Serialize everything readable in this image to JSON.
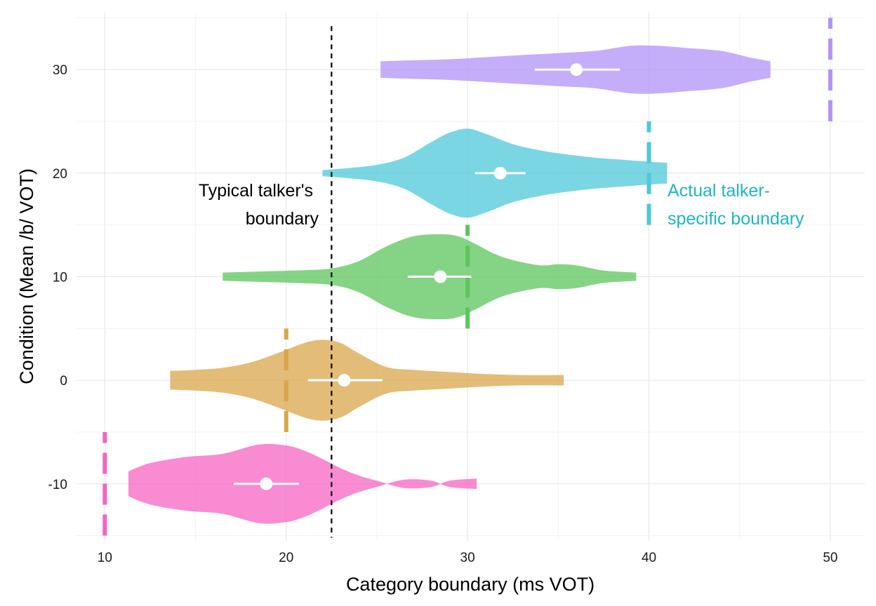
{
  "chart_data": {
    "type": "violin",
    "xlabel": "Category boundary (ms VOT)",
    "ylabel": "Condition (Mean /b/ VOT)",
    "xlim": [
      8.4,
      51.9
    ],
    "ylim": [
      -15.5,
      35.5
    ],
    "x_ticks": [
      10,
      20,
      30,
      40,
      50
    ],
    "x_tick_labels": [
      "10",
      "20",
      "30",
      "40",
      "50"
    ],
    "y_ticks": [
      -10,
      0,
      10,
      20,
      30
    ],
    "y_tick_labels": [
      "-10",
      "0",
      "10",
      "20",
      "30"
    ],
    "grid": true,
    "series": [
      {
        "condition": -10,
        "color": "#F564C3",
        "range": [
          11.3,
          30.5
        ],
        "mean": 18.9,
        "ci": [
          17.1,
          20.7
        ],
        "true_boundary": 10,
        "density": [
          [
            11.3,
            1.2
          ],
          [
            12.5,
            2.0
          ],
          [
            14.5,
            2.6
          ],
          [
            16.5,
            2.9
          ],
          [
            18.5,
            3.8
          ],
          [
            20.0,
            3.7
          ],
          [
            21.0,
            3.2
          ],
          [
            22.0,
            2.4
          ],
          [
            23.0,
            1.5
          ],
          [
            24.0,
            0.8
          ],
          [
            25.0,
            0.3
          ],
          [
            26.5,
            -0.4
          ],
          [
            28.0,
            -0.3
          ],
          [
            29.0,
            0.3
          ],
          [
            30.5,
            0.5
          ]
        ]
      },
      {
        "condition": 0,
        "color": "#D9A649",
        "range": [
          13.6,
          35.3
        ],
        "mean": 23.2,
        "ci": [
          21.2,
          25.3
        ],
        "true_boundary": 20,
        "density": [
          [
            13.6,
            0.9
          ],
          [
            15.0,
            1.0
          ],
          [
            16.5,
            1.2
          ],
          [
            18.0,
            1.7
          ],
          [
            19.5,
            2.6
          ],
          [
            21.0,
            3.6
          ],
          [
            22.0,
            3.9
          ],
          [
            23.0,
            3.6
          ],
          [
            24.0,
            2.6
          ],
          [
            25.5,
            1.3
          ],
          [
            27.0,
            1.0
          ],
          [
            29.0,
            0.8
          ],
          [
            31.0,
            0.6
          ],
          [
            33.0,
            0.5
          ],
          [
            35.3,
            0.5
          ]
        ]
      },
      {
        "condition": 10,
        "color": "#5CC65C",
        "range": [
          16.5,
          39.3
        ],
        "mean": 28.5,
        "ci": [
          26.7,
          30.2
        ],
        "true_boundary": 30,
        "density": [
          [
            16.5,
            0.4
          ],
          [
            18.5,
            0.5
          ],
          [
            20.5,
            0.6
          ],
          [
            22.5,
            0.8
          ],
          [
            24.0,
            1.5
          ],
          [
            25.5,
            2.9
          ],
          [
            27.0,
            3.9
          ],
          [
            28.5,
            4.1
          ],
          [
            29.5,
            3.9
          ],
          [
            30.5,
            3.1
          ],
          [
            31.5,
            2.2
          ],
          [
            32.5,
            1.6
          ],
          [
            34.0,
            1.1
          ],
          [
            35.0,
            1.2
          ],
          [
            36.0,
            1.1
          ],
          [
            37.5,
            0.6
          ],
          [
            39.3,
            0.4
          ]
        ]
      },
      {
        "condition": 20,
        "color": "#4DC8D8",
        "range": [
          22.0,
          41.0
        ],
        "mean": 31.8,
        "ci": [
          30.4,
          33.2
        ],
        "true_boundary": 40,
        "density": [
          [
            22.0,
            0.3
          ],
          [
            23.5,
            0.5
          ],
          [
            25.0,
            0.8
          ],
          [
            26.5,
            1.5
          ],
          [
            28.0,
            3.0
          ],
          [
            29.0,
            3.9
          ],
          [
            30.0,
            4.3
          ],
          [
            31.0,
            3.8
          ],
          [
            32.5,
            2.8
          ],
          [
            34.0,
            2.2
          ],
          [
            35.5,
            1.8
          ],
          [
            37.0,
            1.5
          ],
          [
            38.5,
            1.3
          ],
          [
            40.0,
            1.1
          ],
          [
            41.0,
            1.0
          ]
        ]
      },
      {
        "condition": 30,
        "color": "#B193F7",
        "range": [
          25.2,
          46.7
        ],
        "mean": 36.0,
        "ci": [
          33.7,
          38.4
        ],
        "true_boundary": 50,
        "density": [
          [
            25.2,
            0.8
          ],
          [
            27.0,
            0.9
          ],
          [
            29.0,
            1.0
          ],
          [
            31.0,
            1.2
          ],
          [
            33.0,
            1.4
          ],
          [
            35.0,
            1.6
          ],
          [
            37.0,
            1.8
          ],
          [
            39.0,
            2.3
          ],
          [
            40.5,
            2.3
          ],
          [
            42.0,
            2.1
          ],
          [
            44.0,
            1.8
          ],
          [
            45.5,
            1.2
          ],
          [
            46.7,
            0.8
          ]
        ]
      }
    ],
    "reference_line": {
      "x": 22.5,
      "label_line1": "Typical talker's",
      "label_line2": "boundary",
      "color": "#000000"
    },
    "annotation": {
      "label_line1": "Actual talker-",
      "label_line2": "specific boundary",
      "color": "#1FB5C5"
    }
  }
}
